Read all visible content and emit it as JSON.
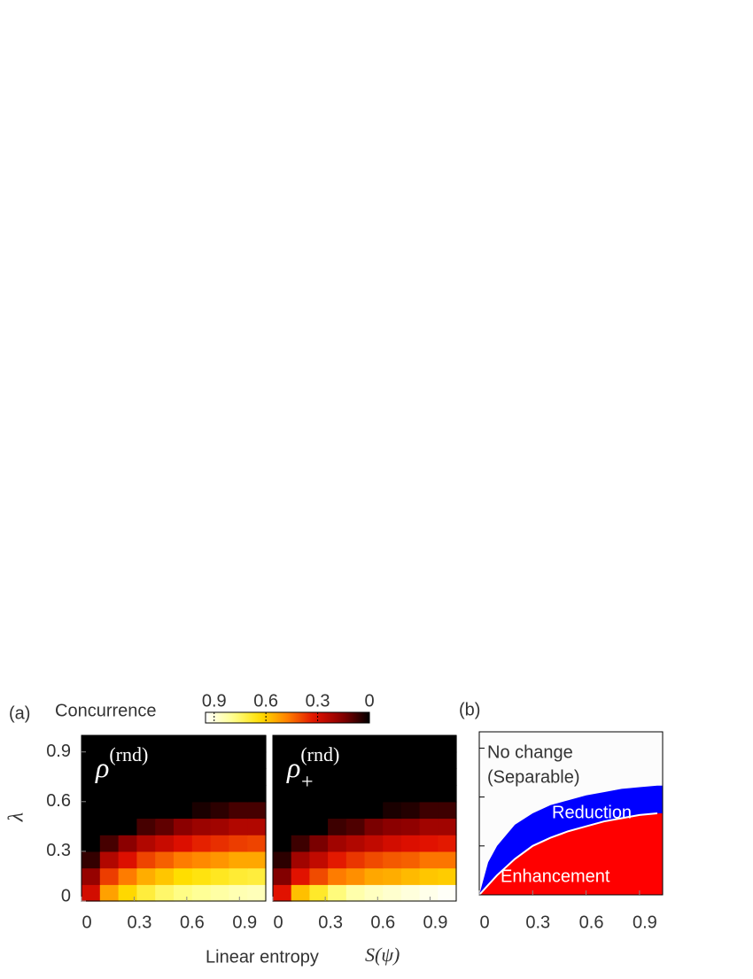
{
  "figure": {
    "panel_a": "(a)",
    "panel_b": "(b)",
    "xlabel": "Linear entropy",
    "xlabel_math": "S(ψ)",
    "colorbar": {
      "label": "Concurrence",
      "lim": [
        0.95,
        0
      ],
      "ticks": [
        0.9,
        0.6,
        0.3,
        0
      ],
      "colorscale": [
        "#000000",
        "#8a0000",
        "#e01000",
        "#ff8000",
        "#ffe000",
        "#ffff90",
        "#ffffff"
      ]
    }
  },
  "chart_data": [
    {
      "type": "heatmap",
      "ylabel": "λ",
      "annotation": {
        "base": "ρ",
        "sup": "(rnd)"
      },
      "xlim": [
        0,
        1.05
      ],
      "ylim": [
        0,
        1
      ],
      "xticks": [
        0,
        0.3,
        0.6,
        0.9
      ],
      "yticks": [
        0,
        0.3,
        0.6,
        0.9
      ],
      "x_edges": [
        0,
        0.105,
        0.21,
        0.315,
        0.42,
        0.525,
        0.63,
        0.735,
        0.84,
        0.945,
        1.05
      ],
      "y_edges": [
        0,
        0.1,
        0.2,
        0.3,
        0.4,
        0.5,
        0.6,
        0.7,
        0.8,
        0.9,
        1.0
      ],
      "z": [
        [
          0.29,
          0.53,
          0.62,
          0.7,
          0.75,
          0.78,
          0.8,
          0.82,
          0.84,
          0.85
        ],
        [
          0.18,
          0.38,
          0.47,
          0.55,
          0.59,
          0.63,
          0.65,
          0.67,
          0.69,
          0.7
        ],
        [
          0.06,
          0.23,
          0.31,
          0.39,
          0.43,
          0.47,
          0.49,
          0.51,
          0.54,
          0.54
        ],
        [
          0,
          0.08,
          0.16,
          0.23,
          0.27,
          0.31,
          0.34,
          0.36,
          0.38,
          0.39
        ],
        [
          0,
          0,
          0,
          0.08,
          0.11,
          0.16,
          0.19,
          0.2,
          0.23,
          0.23
        ],
        [
          0,
          0,
          0,
          0,
          0,
          0,
          0.03,
          0.05,
          0.08,
          0.08
        ],
        [
          0,
          0,
          0,
          0,
          0,
          0,
          0,
          0,
          0,
          0
        ],
        [
          0,
          0,
          0,
          0,
          0,
          0,
          0,
          0,
          0,
          0
        ],
        [
          0,
          0,
          0,
          0,
          0,
          0,
          0,
          0,
          0,
          0
        ],
        [
          0,
          0,
          0,
          0,
          0,
          0,
          0,
          0,
          0,
          0
        ]
      ]
    },
    {
      "type": "heatmap",
      "annotation": {
        "base": "ρ",
        "sup": "(rnd)",
        "sub": "+"
      },
      "xlim": [
        0,
        1.05
      ],
      "ylim": [
        0,
        1
      ],
      "xticks": [
        0,
        0.3,
        0.6,
        0.9
      ],
      "x_edges": [
        0,
        0.105,
        0.21,
        0.315,
        0.42,
        0.525,
        0.63,
        0.735,
        0.84,
        0.945,
        1.05
      ],
      "y_edges": [
        0,
        0.1,
        0.2,
        0.3,
        0.4,
        0.5,
        0.6,
        0.7,
        0.8,
        0.9,
        1.0
      ],
      "z": [
        [
          0.32,
          0.58,
          0.68,
          0.77,
          0.83,
          0.86,
          0.88,
          0.9,
          0.92,
          0.94
        ],
        [
          0.15,
          0.32,
          0.4,
          0.47,
          0.5,
          0.54,
          0.55,
          0.57,
          0.59,
          0.6
        ],
        [
          0.05,
          0.2,
          0.26,
          0.33,
          0.37,
          0.4,
          0.42,
          0.43,
          0.46,
          0.46
        ],
        [
          0,
          0.07,
          0.14,
          0.2,
          0.23,
          0.26,
          0.29,
          0.31,
          0.32,
          0.33
        ],
        [
          0,
          0,
          0,
          0.07,
          0.09,
          0.14,
          0.16,
          0.17,
          0.2,
          0.2
        ],
        [
          0,
          0,
          0,
          0,
          0,
          0,
          0.03,
          0.04,
          0.07,
          0.07
        ],
        [
          0,
          0,
          0,
          0,
          0,
          0,
          0,
          0,
          0,
          0
        ],
        [
          0,
          0,
          0,
          0,
          0,
          0,
          0,
          0,
          0,
          0
        ],
        [
          0,
          0,
          0,
          0,
          0,
          0,
          0,
          0,
          0,
          0
        ],
        [
          0,
          0,
          0,
          0,
          0,
          0,
          0,
          0,
          0,
          0
        ]
      ]
    },
    {
      "type": "region",
      "xlim": [
        0,
        1.03
      ],
      "ylim": [
        0,
        1
      ],
      "xticks": [
        0,
        0.3,
        0.6,
        0.9
      ],
      "yticks": [
        0.3,
        0.6,
        0.9
      ],
      "x": [
        0,
        0.05,
        0.1,
        0.2,
        0.3,
        0.4,
        0.5,
        0.6,
        0.7,
        0.8,
        0.9,
        1.0
      ],
      "series": [
        {
          "name": "Enhancement",
          "color": "#ff0000",
          "values": [
            0,
            0.06,
            0.12,
            0.22,
            0.3,
            0.35,
            0.39,
            0.42,
            0.45,
            0.47,
            0.49,
            0.5
          ]
        },
        {
          "name": "Reduction",
          "color": "#0000ff",
          "values": [
            0,
            0.2,
            0.3,
            0.43,
            0.5,
            0.55,
            0.58,
            0.61,
            0.63,
            0.65,
            0.66,
            0.67
          ]
        }
      ],
      "top_labels": [
        "No change",
        "(Separable)"
      ]
    }
  ]
}
